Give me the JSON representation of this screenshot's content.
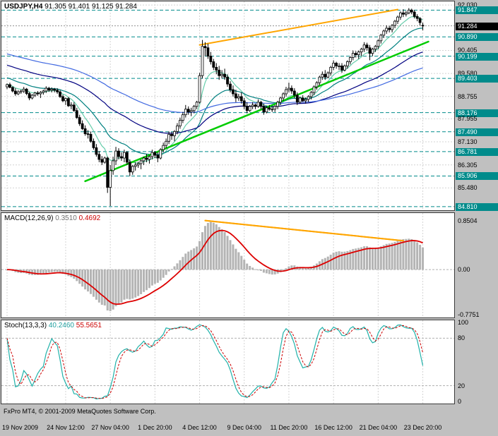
{
  "header": {
    "symbol": "USDJPY,H4",
    "ohlc": "91.305 91.401 91.125 91.284"
  },
  "panels": {
    "macd": {
      "label": "MACD(12,26,9)",
      "value_main": "0.3510",
      "value_signal": "0.4692"
    },
    "stoch": {
      "label": "Stoch(13,3,3)",
      "value_k": "40.2460",
      "value_d": "55.5651"
    }
  },
  "footer": {
    "copyright": "FxPro MT4, © 2001-2009 MetaQuotes Software Corp."
  },
  "chart_data": {
    "type": "candlestick",
    "symbol": "USDJPY",
    "timeframe": "H4",
    "current_price": 91.284,
    "x_labels": [
      {
        "bar": 0,
        "text": "19 Nov 2009"
      },
      {
        "bar": 21,
        "text": "24 Nov 12:00"
      },
      {
        "bar": 37,
        "text": "27 Nov 04:00"
      },
      {
        "bar": 53,
        "text": "1 Dec 20:00"
      },
      {
        "bar": 69,
        "text": "4 Dec 12:00"
      },
      {
        "bar": 85,
        "text": "9 Dec 04:00"
      },
      {
        "bar": 101,
        "text": "11 Dec 20:00"
      },
      {
        "bar": 117,
        "text": "16 Dec 12:00"
      },
      {
        "bar": 133,
        "text": "21 Dec 04:00"
      },
      {
        "bar": 149,
        "text": "23 Dec 20:00"
      }
    ],
    "price_axis": {
      "range": [
        84.68,
        92.16
      ],
      "labels": [
        {
          "text": "92.030",
          "price": 92.03,
          "style": "plain"
        },
        {
          "text": "91.847",
          "price": 91.847,
          "style": "level"
        },
        {
          "text": "91.284",
          "price": 91.284,
          "style": "current"
        },
        {
          "text": "90.890",
          "price": 90.89,
          "style": "level"
        },
        {
          "text": "90.405",
          "price": 90.405,
          "style": "plain"
        },
        {
          "text": "90.199",
          "price": 90.199,
          "style": "level"
        },
        {
          "text": "89.580",
          "price": 89.58,
          "style": "plain"
        },
        {
          "text": "89.403",
          "price": 89.403,
          "style": "level"
        },
        {
          "text": "88.755",
          "price": 88.755,
          "style": "plain"
        },
        {
          "text": "88.176",
          "price": 88.176,
          "style": "level"
        },
        {
          "text": "87.955",
          "price": 87.955,
          "style": "plain"
        },
        {
          "text": "87.490",
          "price": 87.49,
          "style": "level"
        },
        {
          "text": "87.130",
          "price": 87.13,
          "style": "plain"
        },
        {
          "text": "86.781",
          "price": 86.781,
          "style": "level"
        },
        {
          "text": "86.305",
          "price": 86.305,
          "style": "plain"
        },
        {
          "text": "85.906",
          "price": 85.906,
          "style": "level"
        },
        {
          "text": "85.480",
          "price": 85.48,
          "style": "plain"
        },
        {
          "text": "84.810",
          "price": 84.81,
          "style": "level"
        }
      ]
    },
    "overlays": {
      "moving_averages": [
        {
          "period": 8,
          "color": "#66cdaa",
          "seed": 89.2
        },
        {
          "period": 21,
          "color": "#008080",
          "seed": 89.45
        },
        {
          "period": 55,
          "color": "#000080",
          "seed": 89.9
        },
        {
          "period": 100,
          "color": "#4169e1",
          "seed": 90.3
        }
      ],
      "trendlines": [
        {
          "panel": "main",
          "color": "#00cc00",
          "width": 2.5,
          "from": {
            "bar": 28,
            "value": 85.72
          },
          "to": {
            "bar": 151,
            "value": 90.72
          }
        },
        {
          "panel": "main",
          "color": "#ffa500",
          "width": 2,
          "from": {
            "bar": 69,
            "value": 90.6
          },
          "to": {
            "bar": 140,
            "value": 91.87
          }
        },
        {
          "panel": "macd",
          "color": "#ffa500",
          "width": 2,
          "from": {
            "bar": 71,
            "value": 0.85
          },
          "to": {
            "bar": 142,
            "value": 0.5
          }
        }
      ]
    },
    "macd": {
      "fast": 12,
      "slow": 26,
      "signal": 9,
      "range": [
        -0.83,
        0.98
      ],
      "hist_color": "#b4b4b4",
      "signal_color": "#dd0000",
      "axis": [
        {
          "text": "0.8504",
          "value": 0.8504
        },
        {
          "text": "0.00",
          "value": 0
        },
        {
          "text": "-0.7751",
          "value": -0.7751
        }
      ]
    },
    "stoch": {
      "k": 13,
      "slowing": 3,
      "d": 3,
      "range": [
        0,
        100
      ],
      "levels": [
        20,
        80
      ],
      "k_color": "#20b2aa",
      "d_color": "#cc0000",
      "axis": [
        {
          "text": "100",
          "value": 100
        },
        {
          "text": "80",
          "value": 80
        },
        {
          "text": "20",
          "value": 20
        },
        {
          "text": "0",
          "value": 0
        }
      ]
    },
    "ohlc": [
      [
        89.1,
        89.22,
        89.02,
        89.18
      ],
      [
        89.18,
        89.25,
        89.05,
        89.08
      ],
      [
        89.08,
        89.12,
        88.9,
        88.95
      ],
      [
        88.95,
        89.05,
        88.78,
        88.85
      ],
      [
        88.85,
        88.98,
        88.8,
        88.92
      ],
      [
        88.92,
        89.0,
        88.85,
        88.95
      ],
      [
        88.95,
        89.1,
        88.88,
        89.02
      ],
      [
        89.02,
        89.06,
        88.8,
        88.86
      ],
      [
        88.86,
        88.92,
        88.62,
        88.7
      ],
      [
        88.7,
        88.84,
        88.65,
        88.8
      ],
      [
        88.8,
        88.92,
        88.74,
        88.88
      ],
      [
        88.88,
        88.95,
        88.78,
        88.85
      ],
      [
        88.85,
        88.95,
        88.7,
        88.9
      ],
      [
        88.9,
        89.0,
        88.82,
        88.95
      ],
      [
        88.95,
        89.12,
        88.88,
        89.05
      ],
      [
        89.05,
        89.1,
        88.92,
        88.98
      ],
      [
        88.98,
        89.08,
        88.9,
        89.02
      ],
      [
        89.02,
        89.06,
        88.9,
        88.98
      ],
      [
        88.98,
        89.05,
        88.85,
        88.92
      ],
      [
        88.92,
        88.98,
        88.7,
        88.75
      ],
      [
        88.75,
        88.82,
        88.55,
        88.6
      ],
      [
        88.6,
        88.72,
        88.45,
        88.68
      ],
      [
        88.68,
        88.74,
        88.38,
        88.42
      ],
      [
        88.42,
        88.55,
        88.3,
        88.45
      ],
      [
        88.45,
        88.55,
        88.2,
        88.25
      ],
      [
        88.25,
        88.35,
        87.95,
        88.0
      ],
      [
        88.0,
        88.1,
        87.7,
        87.78
      ],
      [
        87.78,
        87.9,
        87.55,
        87.6
      ],
      [
        87.6,
        87.72,
        87.35,
        87.42
      ],
      [
        87.42,
        87.55,
        87.25,
        87.4
      ],
      [
        87.4,
        87.5,
        87.1,
        87.15
      ],
      [
        87.15,
        87.25,
        86.85,
        86.92
      ],
      [
        86.92,
        87.05,
        86.6,
        86.68
      ],
      [
        86.68,
        86.8,
        86.4,
        86.5
      ],
      [
        86.5,
        86.62,
        86.3,
        86.4
      ],
      [
        86.4,
        86.6,
        86.35,
        86.55
      ],
      [
        86.55,
        86.6,
        85.3,
        85.5
      ],
      [
        85.5,
        86.3,
        84.83,
        86.1
      ],
      [
        86.1,
        86.6,
        85.95,
        86.45
      ],
      [
        86.45,
        86.95,
        86.3,
        86.8
      ],
      [
        86.8,
        86.9,
        86.5,
        86.6
      ],
      [
        86.6,
        86.75,
        86.45,
        86.55
      ],
      [
        86.55,
        86.85,
        86.4,
        86.75
      ],
      [
        86.75,
        86.8,
        86.3,
        86.4
      ],
      [
        86.4,
        86.5,
        85.9,
        86.05
      ],
      [
        86.05,
        86.3,
        85.95,
        86.25
      ],
      [
        86.25,
        86.4,
        86.1,
        86.3
      ],
      [
        86.3,
        86.42,
        86.2,
        86.35
      ],
      [
        86.35,
        86.5,
        86.15,
        86.45
      ],
      [
        86.45,
        86.6,
        86.3,
        86.55
      ],
      [
        86.55,
        86.7,
        86.4,
        86.5
      ],
      [
        86.5,
        86.65,
        86.35,
        86.6
      ],
      [
        86.6,
        86.85,
        86.5,
        86.75
      ],
      [
        86.75,
        86.8,
        86.55,
        86.65
      ],
      [
        86.65,
        86.75,
        86.4,
        86.55
      ],
      [
        86.55,
        86.9,
        86.5,
        86.85
      ],
      [
        86.85,
        87.1,
        86.75,
        87.0
      ],
      [
        87.0,
        87.25,
        86.9,
        87.15
      ],
      [
        87.15,
        87.5,
        87.05,
        87.4
      ],
      [
        87.4,
        87.48,
        87.2,
        87.35
      ],
      [
        87.35,
        87.55,
        87.15,
        87.5
      ],
      [
        87.5,
        87.8,
        87.4,
        87.7
      ],
      [
        87.7,
        88.0,
        87.6,
        87.9
      ],
      [
        87.9,
        88.2,
        87.8,
        88.1
      ],
      [
        88.1,
        88.45,
        88.0,
        88.3
      ],
      [
        88.3,
        88.4,
        88.1,
        88.2
      ],
      [
        88.2,
        88.35,
        88.05,
        88.25
      ],
      [
        88.25,
        88.45,
        88.15,
        88.4
      ],
      [
        88.4,
        88.6,
        88.3,
        88.55
      ],
      [
        88.55,
        89.6,
        88.5,
        89.5
      ],
      [
        89.5,
        90.78,
        89.4,
        90.55
      ],
      [
        90.55,
        90.7,
        90.2,
        90.5
      ],
      [
        90.5,
        90.65,
        90.1,
        90.2
      ],
      [
        90.2,
        90.35,
        89.9,
        90.0
      ],
      [
        90.0,
        90.1,
        89.7,
        89.8
      ],
      [
        89.8,
        89.95,
        89.55,
        89.7
      ],
      [
        89.7,
        89.85,
        89.35,
        89.5
      ],
      [
        89.5,
        89.7,
        89.4,
        89.55
      ],
      [
        89.55,
        89.75,
        89.35,
        89.45
      ],
      [
        89.45,
        89.55,
        89.1,
        89.2
      ],
      [
        89.2,
        89.3,
        88.9,
        89.0
      ],
      [
        89.0,
        89.15,
        88.75,
        88.85
      ],
      [
        88.85,
        89.0,
        88.55,
        88.7
      ],
      [
        88.7,
        88.85,
        88.6,
        88.75
      ],
      [
        88.75,
        88.9,
        88.5,
        88.6
      ],
      [
        88.6,
        88.7,
        88.3,
        88.4
      ],
      [
        88.4,
        88.55,
        88.15,
        88.25
      ],
      [
        88.25,
        88.45,
        88.2,
        88.4
      ],
      [
        88.4,
        88.55,
        88.3,
        88.45
      ],
      [
        88.45,
        88.5,
        88.3,
        88.4
      ],
      [
        88.4,
        88.65,
        88.35,
        88.55
      ],
      [
        88.55,
        88.6,
        88.3,
        88.4
      ],
      [
        88.4,
        88.5,
        88.1,
        88.2
      ],
      [
        88.2,
        88.4,
        88.15,
        88.35
      ],
      [
        88.35,
        88.45,
        88.25,
        88.3
      ],
      [
        88.3,
        88.4,
        88.2,
        88.3
      ],
      [
        88.3,
        88.45,
        88.2,
        88.4
      ],
      [
        88.4,
        88.6,
        88.3,
        88.55
      ],
      [
        88.55,
        88.75,
        88.45,
        88.7
      ],
      [
        88.7,
        88.9,
        88.6,
        88.85
      ],
      [
        88.85,
        89.1,
        88.75,
        89.0
      ],
      [
        89.0,
        89.25,
        88.9,
        89.05
      ],
      [
        89.05,
        89.15,
        88.85,
        88.95
      ],
      [
        88.95,
        89.05,
        88.7,
        88.8
      ],
      [
        88.8,
        88.9,
        88.45,
        88.55
      ],
      [
        88.55,
        88.75,
        88.5,
        88.7
      ],
      [
        88.7,
        88.8,
        88.55,
        88.6
      ],
      [
        88.6,
        88.72,
        88.5,
        88.65
      ],
      [
        88.65,
        88.8,
        88.55,
        88.75
      ],
      [
        88.75,
        88.95,
        88.65,
        88.9
      ],
      [
        88.9,
        89.15,
        88.8,
        89.1
      ],
      [
        89.1,
        89.3,
        89.0,
        89.25
      ],
      [
        89.25,
        89.5,
        89.15,
        89.45
      ],
      [
        89.45,
        89.65,
        89.35,
        89.55
      ],
      [
        89.55,
        89.7,
        89.35,
        89.45
      ],
      [
        89.45,
        89.65,
        89.4,
        89.6
      ],
      [
        89.6,
        89.85,
        89.5,
        89.8
      ],
      [
        89.8,
        90.05,
        89.7,
        89.95
      ],
      [
        89.95,
        90.0,
        89.75,
        89.85
      ],
      [
        89.85,
        89.95,
        89.7,
        89.85
      ],
      [
        89.85,
        89.95,
        89.6,
        89.7
      ],
      [
        89.7,
        89.9,
        89.65,
        89.85
      ],
      [
        89.85,
        90.05,
        89.75,
        90.0
      ],
      [
        90.0,
        90.2,
        89.9,
        90.15
      ],
      [
        90.15,
        90.4,
        90.05,
        90.3
      ],
      [
        90.3,
        90.38,
        90.15,
        90.25
      ],
      [
        90.25,
        90.4,
        90.1,
        90.35
      ],
      [
        90.35,
        90.5,
        90.2,
        90.45
      ],
      [
        90.45,
        90.7,
        90.35,
        90.6
      ],
      [
        90.6,
        90.68,
        90.4,
        90.5
      ],
      [
        90.5,
        90.6,
        90.05,
        90.3
      ],
      [
        90.3,
        90.5,
        90.2,
        90.45
      ],
      [
        90.45,
        90.6,
        90.35,
        90.55
      ],
      [
        90.55,
        90.8,
        90.45,
        90.75
      ],
      [
        90.75,
        91.0,
        90.65,
        90.95
      ],
      [
        90.95,
        91.15,
        90.85,
        91.1
      ],
      [
        91.1,
        91.3,
        91.0,
        91.2
      ],
      [
        91.2,
        91.28,
        91.05,
        91.15
      ],
      [
        91.15,
        91.35,
        91.05,
        91.3
      ],
      [
        91.3,
        91.5,
        91.2,
        91.45
      ],
      [
        91.45,
        91.65,
        91.35,
        91.6
      ],
      [
        91.6,
        91.8,
        91.5,
        91.75
      ],
      [
        91.75,
        91.88,
        91.6,
        91.7
      ],
      [
        91.7,
        91.82,
        91.62,
        91.75
      ],
      [
        91.75,
        91.92,
        91.7,
        91.85
      ],
      [
        91.85,
        91.9,
        91.7,
        91.78
      ],
      [
        91.78,
        91.85,
        91.55,
        91.62
      ],
      [
        91.62,
        91.7,
        91.45,
        91.55
      ],
      [
        91.55,
        91.6,
        91.3,
        91.4
      ],
      [
        91.305,
        91.401,
        91.125,
        91.284
      ]
    ]
  }
}
